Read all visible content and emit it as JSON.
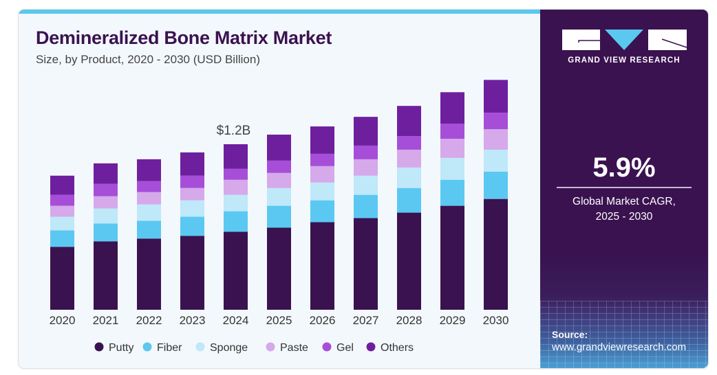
{
  "header": {
    "title": "Demineralized Bone Matrix Market",
    "subtitle": "Size, by Product, 2020 - 2030 (USD Billion)"
  },
  "panel": {
    "brand": "GRAND VIEW RESEARCH",
    "cagr_value": "5.9%",
    "cagr_label_line1": "Global Market CAGR,",
    "cagr_label_line2": "2025 - 2030",
    "source_label": "Source:",
    "source_url": "www.grandviewresearch.com"
  },
  "colors": {
    "title": "#3a1250",
    "panel": "#3a1250",
    "accent": "#5bc8ef"
  },
  "chart_data": {
    "type": "bar",
    "stacked": true,
    "title": "Demineralized Bone Matrix Market",
    "subtitle": "Size, by Product, 2020 - 2030 (USD Billion)",
    "xlabel": "",
    "ylabel": "USD Billion",
    "ylim": [
      0,
      1.8
    ],
    "grid": false,
    "legend_position": "bottom",
    "categories": [
      "2020",
      "2021",
      "2022",
      "2023",
      "2024",
      "2025",
      "2026",
      "2027",
      "2028",
      "2029",
      "2030"
    ],
    "series": [
      {
        "name": "Putty",
        "color": "#3a1250",
        "values": [
          0.46,
          0.5,
          0.52,
          0.54,
          0.57,
          0.6,
          0.64,
          0.67,
          0.71,
          0.76,
          0.81
        ]
      },
      {
        "name": "Fiber",
        "color": "#5bc8f2",
        "values": [
          0.12,
          0.13,
          0.13,
          0.14,
          0.15,
          0.16,
          0.16,
          0.17,
          0.18,
          0.19,
          0.2
        ]
      },
      {
        "name": "Sponge",
        "color": "#bfe8f9",
        "values": [
          0.1,
          0.11,
          0.12,
          0.12,
          0.12,
          0.13,
          0.13,
          0.14,
          0.15,
          0.16,
          0.16
        ]
      },
      {
        "name": "Paste",
        "color": "#d5a9ea",
        "values": [
          0.08,
          0.09,
          0.09,
          0.09,
          0.11,
          0.11,
          0.12,
          0.12,
          0.13,
          0.14,
          0.15
        ]
      },
      {
        "name": "Gel",
        "color": "#a64ed8",
        "values": [
          0.08,
          0.09,
          0.08,
          0.09,
          0.08,
          0.09,
          0.09,
          0.1,
          0.1,
          0.11,
          0.12
        ]
      },
      {
        "name": "Others",
        "color": "#6e1f9e",
        "values": [
          0.14,
          0.15,
          0.16,
          0.17,
          0.18,
          0.19,
          0.2,
          0.21,
          0.22,
          0.23,
          0.24
        ]
      }
    ],
    "annotations": [
      {
        "category": "2024",
        "text": "$1.2B"
      }
    ]
  }
}
